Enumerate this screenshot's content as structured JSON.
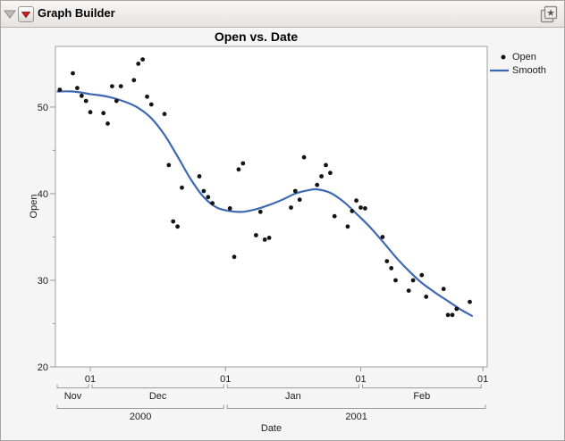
{
  "header": {
    "title": "Graph Builder",
    "icons": {
      "disclosure_triangle": "disclosure-triangle-down",
      "red_triangle_menu": "red-triangle-down",
      "corner_button": "layered-window-star"
    }
  },
  "colors": {
    "smooth_line": "#3e69b2",
    "scatter_dot": "#141414",
    "red_triangle": "#cf1a1a",
    "axis_gray": "#9a9a9a",
    "frame_gray": "#a0a0a0",
    "text_dark": "#1c1c1c"
  },
  "chart_data": {
    "type": "scatter",
    "title": "Open vs. Date",
    "xlabel": "Date",
    "ylabel": "Open",
    "ylim": [
      20,
      57
    ],
    "y_major_ticks": [
      20,
      30,
      40,
      50
    ],
    "y_minor_ticks": [
      25,
      35,
      45
    ],
    "x_domain": [
      "2000-11-23",
      "2001-03-02"
    ],
    "x_day_ticks": [
      {
        "date": "2000-12-01",
        "label": "01"
      },
      {
        "date": "2001-01-01",
        "label": "01"
      },
      {
        "date": "2001-02-01",
        "label": "01"
      },
      {
        "date": "2001-03-01",
        "label": "01"
      }
    ],
    "x_month_labels": [
      {
        "label": "Nov",
        "start": "2000-11-23",
        "end": "2000-12-01"
      },
      {
        "label": "Dec",
        "start": "2000-12-01",
        "end": "2001-01-01"
      },
      {
        "label": "Jan",
        "start": "2001-01-01",
        "end": "2001-02-01"
      },
      {
        "label": "Feb",
        "start": "2001-02-01",
        "end": "2001-03-01"
      }
    ],
    "x_year_labels": [
      {
        "label": "2000",
        "start": "2000-11-23",
        "end": "2001-01-01"
      },
      {
        "label": "2001",
        "start": "2001-01-01",
        "end": "2001-03-02"
      }
    ],
    "legend_position": "right",
    "series": [
      {
        "name": "Open",
        "type": "scatter",
        "points": [
          {
            "date": "2000-11-24",
            "open": 52.0
          },
          {
            "date": "2000-11-27",
            "open": 53.9
          },
          {
            "date": "2000-11-28",
            "open": 52.2
          },
          {
            "date": "2000-11-29",
            "open": 51.3
          },
          {
            "date": "2000-11-30",
            "open": 50.7
          },
          {
            "date": "2000-12-01",
            "open": 49.4
          },
          {
            "date": "2000-12-04",
            "open": 49.3
          },
          {
            "date": "2000-12-05",
            "open": 48.1
          },
          {
            "date": "2000-12-06",
            "open": 52.4
          },
          {
            "date": "2000-12-07",
            "open": 50.7
          },
          {
            "date": "2000-12-08",
            "open": 52.4
          },
          {
            "date": "2000-12-11",
            "open": 53.1
          },
          {
            "date": "2000-12-12",
            "open": 55.0
          },
          {
            "date": "2000-12-13",
            "open": 55.5
          },
          {
            "date": "2000-12-14",
            "open": 51.2
          },
          {
            "date": "2000-12-15",
            "open": 50.3
          },
          {
            "date": "2000-12-18",
            "open": 49.2
          },
          {
            "date": "2000-12-19",
            "open": 43.3
          },
          {
            "date": "2000-12-20",
            "open": 36.8
          },
          {
            "date": "2000-12-21",
            "open": 36.2
          },
          {
            "date": "2000-12-22",
            "open": 40.7
          },
          {
            "date": "2000-12-26",
            "open": 42.0
          },
          {
            "date": "2000-12-27",
            "open": 40.3
          },
          {
            "date": "2000-12-28",
            "open": 39.6
          },
          {
            "date": "2000-12-29",
            "open": 38.9
          },
          {
            "date": "2001-01-02",
            "open": 38.3
          },
          {
            "date": "2001-01-03",
            "open": 32.7
          },
          {
            "date": "2001-01-04",
            "open": 42.8
          },
          {
            "date": "2001-01-05",
            "open": 43.5
          },
          {
            "date": "2001-01-08",
            "open": 35.2
          },
          {
            "date": "2001-01-09",
            "open": 37.9
          },
          {
            "date": "2001-01-10",
            "open": 34.7
          },
          {
            "date": "2001-01-11",
            "open": 34.9
          },
          {
            "date": "2001-01-16",
            "open": 38.4
          },
          {
            "date": "2001-01-17",
            "open": 40.3
          },
          {
            "date": "2001-01-18",
            "open": 39.3
          },
          {
            "date": "2001-01-19",
            "open": 44.2
          },
          {
            "date": "2001-01-22",
            "open": 41.0
          },
          {
            "date": "2001-01-23",
            "open": 42.0
          },
          {
            "date": "2001-01-24",
            "open": 43.3
          },
          {
            "date": "2001-01-25",
            "open": 42.4
          },
          {
            "date": "2001-01-26",
            "open": 37.4
          },
          {
            "date": "2001-01-29",
            "open": 36.2
          },
          {
            "date": "2001-01-30",
            "open": 38.0
          },
          {
            "date": "2001-01-31",
            "open": 39.2
          },
          {
            "date": "2001-02-01",
            "open": 38.4
          },
          {
            "date": "2001-02-02",
            "open": 38.3
          },
          {
            "date": "2001-02-06",
            "open": 35.0
          },
          {
            "date": "2001-02-07",
            "open": 32.2
          },
          {
            "date": "2001-02-08",
            "open": 31.4
          },
          {
            "date": "2001-02-09",
            "open": 30.0
          },
          {
            "date": "2001-02-12",
            "open": 28.8
          },
          {
            "date": "2001-02-13",
            "open": 30.0
          },
          {
            "date": "2001-02-15",
            "open": 30.6
          },
          {
            "date": "2001-02-16",
            "open": 28.1
          },
          {
            "date": "2001-02-20",
            "open": 29.0
          },
          {
            "date": "2001-02-21",
            "open": 26.0
          },
          {
            "date": "2001-02-22",
            "open": 26.0
          },
          {
            "date": "2001-02-23",
            "open": 26.7
          },
          {
            "date": "2001-02-26",
            "open": 27.5
          }
        ]
      },
      {
        "name": "Smooth",
        "type": "line",
        "x_unit": "days_from_2000-12-01",
        "points": [
          [
            -7.5,
            51.8
          ],
          [
            -4,
            51.8
          ],
          [
            0,
            51.5
          ],
          [
            4,
            51.2
          ],
          [
            8,
            50.6
          ],
          [
            11,
            49.9
          ],
          [
            14,
            48.7
          ],
          [
            17,
            46.8
          ],
          [
            20,
            44.3
          ],
          [
            23,
            41.7
          ],
          [
            26,
            39.6
          ],
          [
            29,
            38.4
          ],
          [
            32,
            38.0
          ],
          [
            35,
            37.9
          ],
          [
            38,
            38.2
          ],
          [
            41,
            38.7
          ],
          [
            44,
            39.3
          ],
          [
            47,
            40.0
          ],
          [
            50,
            40.4
          ],
          [
            52,
            40.5
          ],
          [
            55,
            40.1
          ],
          [
            58,
            39.1
          ],
          [
            61,
            37.7
          ],
          [
            64,
            36.2
          ],
          [
            67,
            34.5
          ],
          [
            70,
            32.7
          ],
          [
            73,
            31.1
          ],
          [
            76,
            29.7
          ],
          [
            79,
            28.6
          ],
          [
            82,
            27.6
          ],
          [
            85,
            26.6
          ],
          [
            87.5,
            25.9
          ]
        ]
      }
    ]
  }
}
